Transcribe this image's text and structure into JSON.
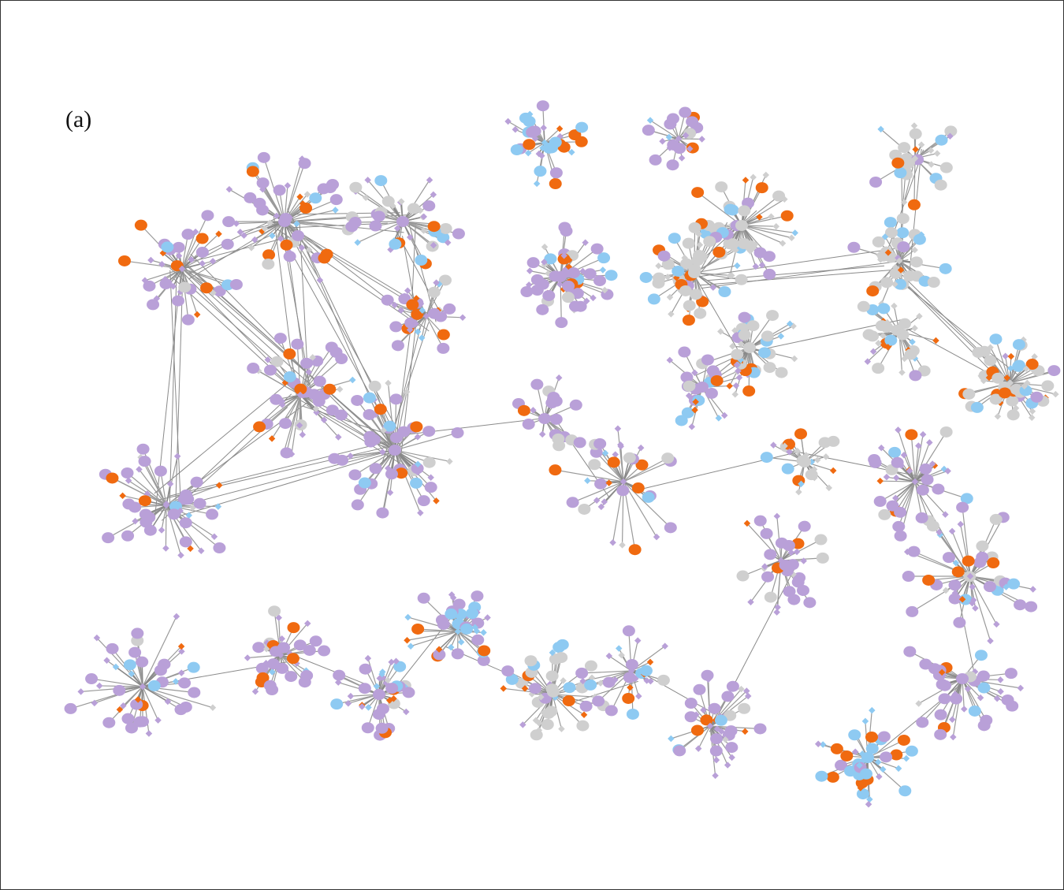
{
  "label": "(a)"
}
